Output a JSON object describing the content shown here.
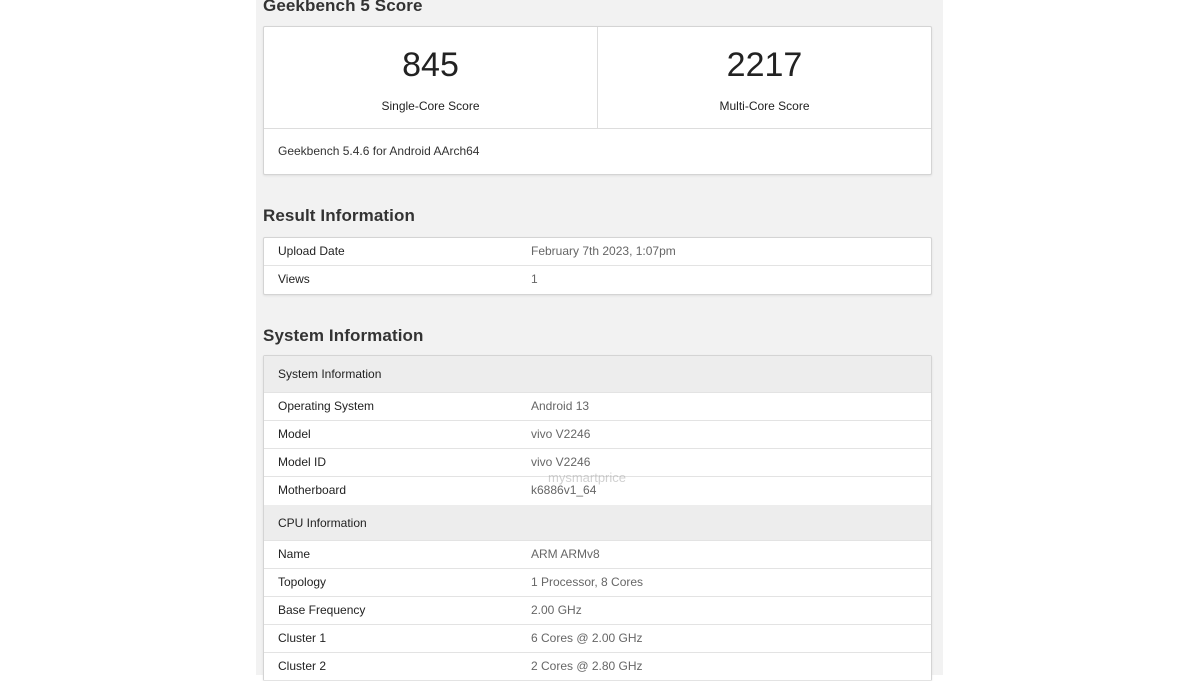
{
  "score_section": {
    "title": "Geekbench 5 Score",
    "single_core": {
      "value": "845",
      "label": "Single-Core Score"
    },
    "multi_core": {
      "value": "2217",
      "label": "Multi-Core Score"
    },
    "version": "Geekbench 5.4.6 for Android AArch64"
  },
  "result_info": {
    "title": "Result Information",
    "rows": [
      {
        "key": "Upload Date",
        "value": "February 7th 2023, 1:07pm"
      },
      {
        "key": "Views",
        "value": "1"
      }
    ]
  },
  "system_info": {
    "title": "System Information",
    "system_header": "System Information",
    "system_rows": [
      {
        "key": "Operating System",
        "value": "Android 13"
      },
      {
        "key": "Model",
        "value": "vivo V2246"
      },
      {
        "key": "Model ID",
        "value": "vivo V2246"
      },
      {
        "key": "Motherboard",
        "value": "k6886v1_64"
      }
    ],
    "cpu_header": "CPU Information",
    "cpu_rows": [
      {
        "key": "Name",
        "value": "ARM ARMv8"
      },
      {
        "key": "Topology",
        "value": "1 Processor, 8 Cores"
      },
      {
        "key": "Base Frequency",
        "value": "2.00 GHz"
      },
      {
        "key": "Cluster 1",
        "value": "6 Cores @ 2.00 GHz"
      },
      {
        "key": "Cluster 2",
        "value": "2 Cores @ 2.80 GHz"
      }
    ]
  },
  "watermark": "mysmartprice"
}
